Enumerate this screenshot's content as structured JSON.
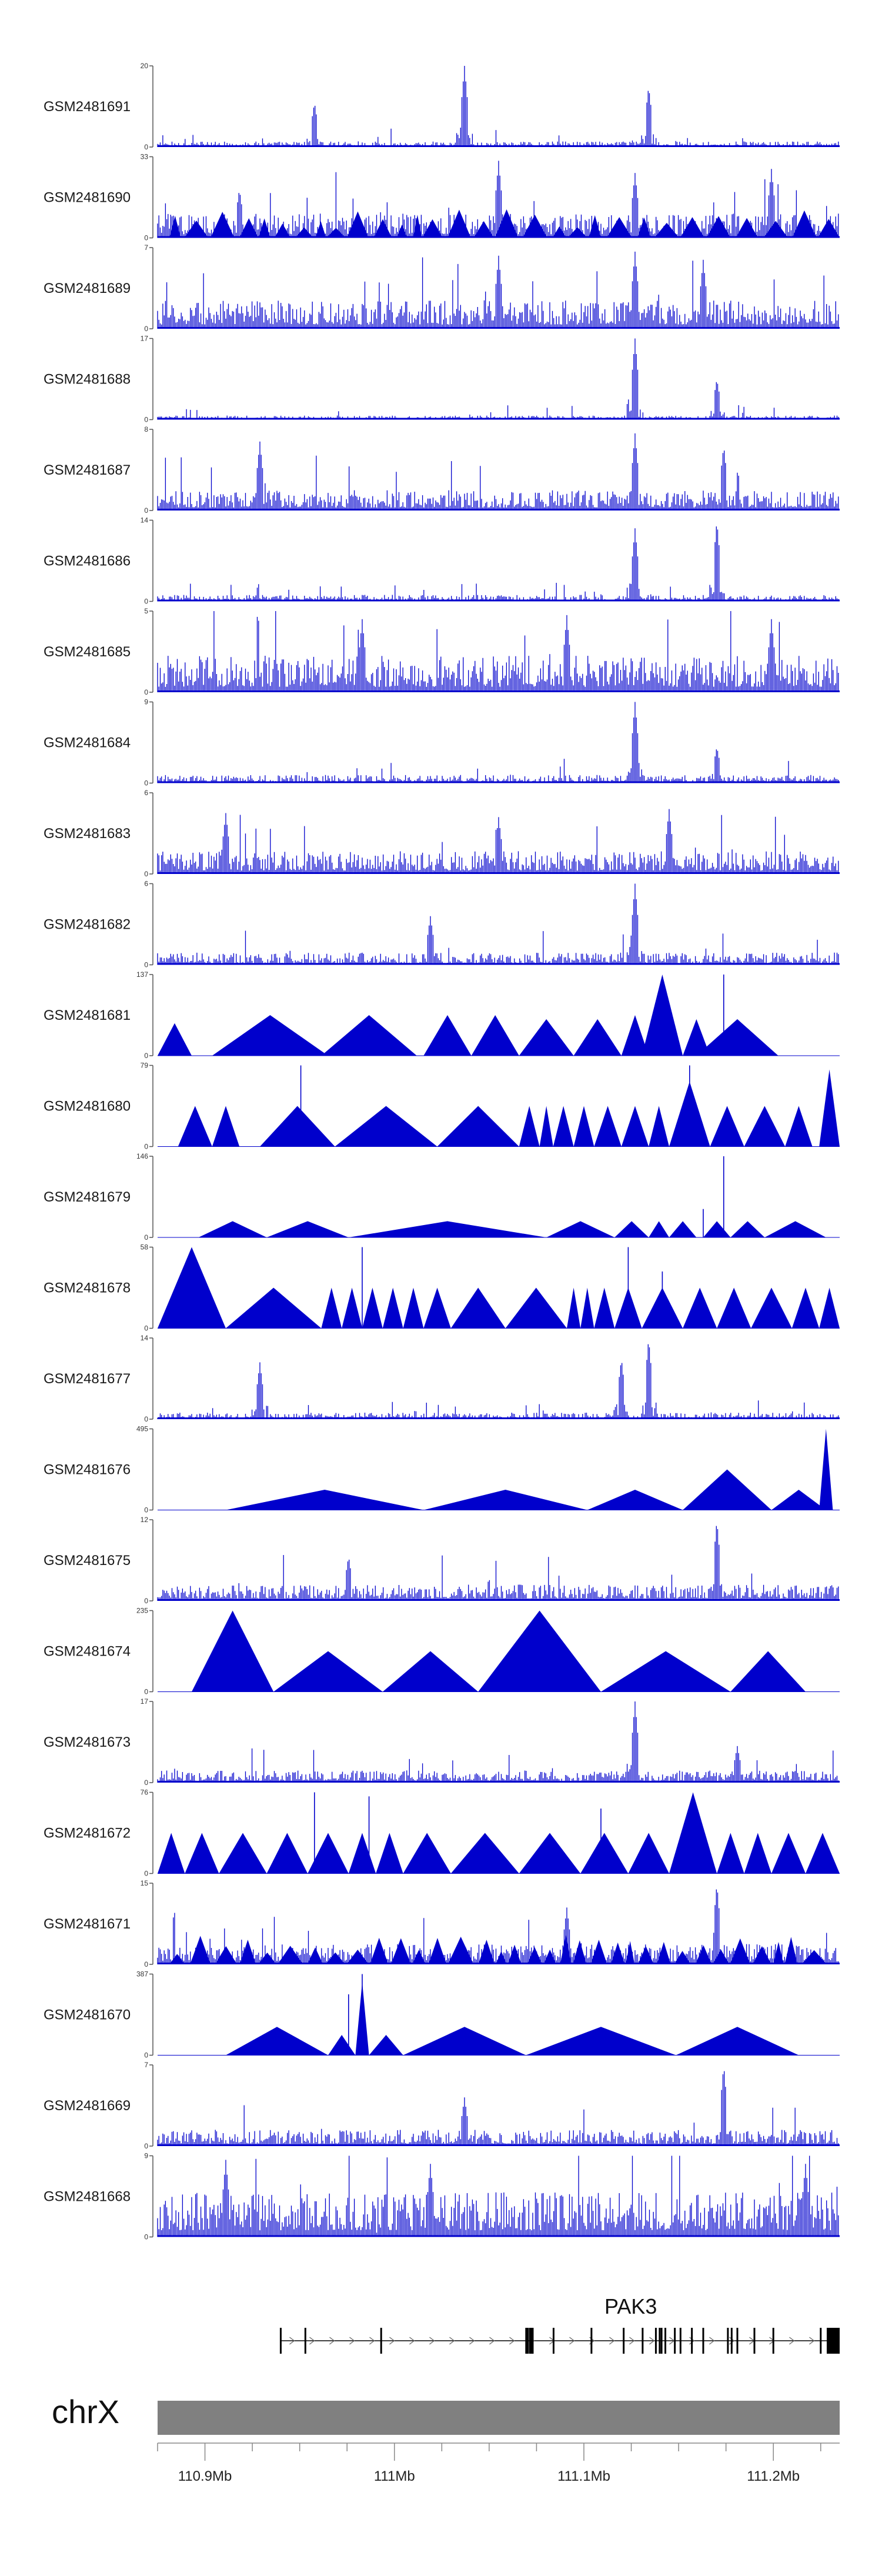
{
  "chart_data": {
    "type": "genome_tracks",
    "x_range_mb": [
      110.875,
      111.235
    ],
    "colors": {
      "signal": "#0000cc",
      "ideogram": "#808080",
      "gene": "#000000"
    },
    "tracks": [
      {
        "name": "GSM2481691",
        "max": "20",
        "min": "0",
        "style": "dense",
        "base": 0.07,
        "peaks": [
          [
            0.23,
            0.55
          ],
          [
            0.45,
            1.0
          ],
          [
            0.72,
            0.75
          ]
        ]
      },
      {
        "name": "GSM2481690",
        "max": "33",
        "min": "0",
        "style": "dense_tri",
        "base": 0.3,
        "peaks": [
          [
            0.12,
            0.6
          ],
          [
            0.5,
            0.95
          ],
          [
            0.7,
            0.8
          ],
          [
            0.9,
            0.85
          ]
        ]
      },
      {
        "name": "GSM2481689",
        "max": "7",
        "min": "0",
        "style": "dense",
        "base": 0.35,
        "peaks": [
          [
            0.5,
            0.9
          ],
          [
            0.7,
            0.95
          ],
          [
            0.8,
            0.85
          ]
        ]
      },
      {
        "name": "GSM2481688",
        "max": "17",
        "min": "0",
        "style": "dense",
        "base": 0.05,
        "peaks": [
          [
            0.7,
            1.0
          ],
          [
            0.82,
            0.5
          ]
        ]
      },
      {
        "name": "GSM2481687",
        "max": "8",
        "min": "0",
        "style": "dense",
        "base": 0.25,
        "peaks": [
          [
            0.15,
            0.85
          ],
          [
            0.7,
            0.95
          ],
          [
            0.83,
            0.8
          ]
        ]
      },
      {
        "name": "GSM2481686",
        "max": "14",
        "min": "0",
        "style": "dense",
        "base": 0.08,
        "peaks": [
          [
            0.7,
            0.9
          ],
          [
            0.82,
            1.0
          ]
        ]
      },
      {
        "name": "GSM2481685",
        "max": "5",
        "min": "0",
        "style": "dense",
        "base": 0.45,
        "peaks": [
          [
            0.3,
            0.9
          ],
          [
            0.6,
            0.95
          ],
          [
            0.9,
            0.9
          ]
        ]
      },
      {
        "name": "GSM2481684",
        "max": "9",
        "min": "0",
        "style": "dense",
        "base": 0.1,
        "peaks": [
          [
            0.7,
            1.0
          ],
          [
            0.82,
            0.45
          ]
        ]
      },
      {
        "name": "GSM2481683",
        "max": "6",
        "min": "0",
        "style": "dense",
        "base": 0.28,
        "peaks": [
          [
            0.1,
            0.75
          ],
          [
            0.5,
            0.7
          ],
          [
            0.75,
            0.8
          ]
        ]
      },
      {
        "name": "GSM2481682",
        "max": "6",
        "min": "0",
        "style": "dense",
        "base": 0.15,
        "peaks": [
          [
            0.7,
            1.0
          ],
          [
            0.4,
            0.6
          ]
        ]
      },
      {
        "name": "GSM2481681",
        "max": "137",
        "min": "0",
        "style": "triangles",
        "tris": [
          [
            0.0,
            0.05,
            0.4
          ],
          [
            0.08,
            0.25,
            0.5
          ],
          [
            0.24,
            0.38,
            0.5
          ],
          [
            0.39,
            0.46,
            0.5
          ],
          [
            0.46,
            0.53,
            0.5
          ],
          [
            0.53,
            0.61,
            0.45
          ],
          [
            0.61,
            0.68,
            0.45
          ],
          [
            0.68,
            0.72,
            0.5
          ],
          [
            0.71,
            0.77,
            1.0
          ],
          [
            0.77,
            0.81,
            0.45
          ],
          [
            0.79,
            0.91,
            0.45
          ]
        ],
        "spikes": [
          [
            0.83,
            1.0
          ]
        ]
      },
      {
        "name": "GSM2481680",
        "max": "79",
        "min": "0",
        "style": "triangles",
        "tris": [
          [
            0.03,
            0.08,
            0.5
          ],
          [
            0.08,
            0.12,
            0.5
          ],
          [
            0.15,
            0.26,
            0.5
          ],
          [
            0.26,
            0.41,
            0.5
          ],
          [
            0.41,
            0.53,
            0.5
          ],
          [
            0.53,
            0.56,
            0.5
          ],
          [
            0.56,
            0.58,
            0.5
          ],
          [
            0.58,
            0.61,
            0.5
          ],
          [
            0.61,
            0.64,
            0.5
          ],
          [
            0.64,
            0.68,
            0.5
          ],
          [
            0.68,
            0.72,
            0.5
          ],
          [
            0.72,
            0.75,
            0.5
          ],
          [
            0.75,
            0.81,
            0.8
          ],
          [
            0.81,
            0.86,
            0.5
          ],
          [
            0.86,
            0.92,
            0.5
          ],
          [
            0.92,
            0.96,
            0.5
          ],
          [
            0.97,
            1.0,
            0.95
          ]
        ],
        "spikes": [
          [
            0.21,
            1.0
          ],
          [
            0.78,
            1.0
          ]
        ]
      },
      {
        "name": "GSM2481679",
        "max": "146",
        "min": "0",
        "style": "triangles",
        "tris": [
          [
            0.06,
            0.16,
            0.2
          ],
          [
            0.16,
            0.28,
            0.2
          ],
          [
            0.28,
            0.57,
            0.2
          ],
          [
            0.57,
            0.67,
            0.2
          ],
          [
            0.67,
            0.72,
            0.2
          ],
          [
            0.72,
            0.75,
            0.2
          ],
          [
            0.75,
            0.79,
            0.2
          ],
          [
            0.8,
            0.84,
            0.2
          ],
          [
            0.84,
            0.89,
            0.2
          ],
          [
            0.89,
            0.98,
            0.2
          ]
        ],
        "spikes": [
          [
            0.83,
            1.0
          ],
          [
            0.8,
            0.35
          ]
        ]
      },
      {
        "name": "GSM2481678",
        "max": "58",
        "min": "0",
        "style": "triangles",
        "tris": [
          [
            0.0,
            0.1,
            1.0
          ],
          [
            0.1,
            0.24,
            0.5
          ],
          [
            0.24,
            0.27,
            0.5
          ],
          [
            0.27,
            0.3,
            0.5
          ],
          [
            0.3,
            0.33,
            0.5
          ],
          [
            0.33,
            0.36,
            0.5
          ],
          [
            0.36,
            0.39,
            0.5
          ],
          [
            0.39,
            0.43,
            0.5
          ],
          [
            0.43,
            0.51,
            0.5
          ],
          [
            0.51,
            0.6,
            0.5
          ],
          [
            0.6,
            0.62,
            0.5
          ],
          [
            0.62,
            0.64,
            0.5
          ],
          [
            0.64,
            0.67,
            0.5
          ],
          [
            0.67,
            0.71,
            0.5
          ],
          [
            0.71,
            0.77,
            0.5
          ],
          [
            0.77,
            0.82,
            0.5
          ],
          [
            0.82,
            0.87,
            0.5
          ],
          [
            0.87,
            0.93,
            0.5
          ],
          [
            0.93,
            0.97,
            0.5
          ],
          [
            0.97,
            1.0,
            0.5
          ]
        ],
        "spikes": [
          [
            0.3,
            1.0
          ],
          [
            0.69,
            1.0
          ],
          [
            0.74,
            0.7
          ]
        ]
      },
      {
        "name": "GSM2481677",
        "max": "14",
        "min": "0",
        "style": "dense",
        "base": 0.08,
        "peaks": [
          [
            0.15,
            0.7
          ],
          [
            0.72,
            1.0
          ],
          [
            0.68,
            0.75
          ]
        ]
      },
      {
        "name": "GSM2481676",
        "max": "495",
        "min": "0",
        "style": "triangles",
        "tris": [
          [
            0.1,
            0.39,
            0.25
          ],
          [
            0.39,
            0.63,
            0.25
          ],
          [
            0.63,
            0.77,
            0.25
          ],
          [
            0.77,
            0.9,
            0.5
          ],
          [
            0.9,
            0.98,
            0.25
          ],
          [
            0.97,
            0.99,
            1.0
          ]
        ],
        "spikes": []
      },
      {
        "name": "GSM2481675",
        "max": "12",
        "min": "0",
        "style": "dense",
        "base": 0.2,
        "peaks": [
          [
            0.82,
            1.0
          ],
          [
            0.28,
            0.55
          ]
        ]
      },
      {
        "name": "GSM2481674",
        "max": "235",
        "min": "0",
        "style": "triangles",
        "tris": [
          [
            0.05,
            0.17,
            1.0
          ],
          [
            0.17,
            0.33,
            0.5
          ],
          [
            0.33,
            0.47,
            0.5
          ],
          [
            0.47,
            0.65,
            1.0
          ],
          [
            0.65,
            0.84,
            0.5
          ],
          [
            0.84,
            0.95,
            0.5
          ]
        ],
        "spikes": []
      },
      {
        "name": "GSM2481673",
        "max": "17",
        "min": "0",
        "style": "dense",
        "base": 0.15,
        "peaks": [
          [
            0.7,
            1.0
          ],
          [
            0.85,
            0.45
          ]
        ]
      },
      {
        "name": "GSM2481672",
        "max": "76",
        "min": "0",
        "style": "triangles",
        "tris": [
          [
            0.0,
            0.04,
            0.5
          ],
          [
            0.04,
            0.09,
            0.5
          ],
          [
            0.09,
            0.16,
            0.5
          ],
          [
            0.16,
            0.22,
            0.5
          ],
          [
            0.22,
            0.28,
            0.5
          ],
          [
            0.28,
            0.32,
            0.5
          ],
          [
            0.32,
            0.36,
            0.5
          ],
          [
            0.36,
            0.43,
            0.5
          ],
          [
            0.43,
            0.53,
            0.5
          ],
          [
            0.53,
            0.62,
            0.5
          ],
          [
            0.62,
            0.69,
            0.5
          ],
          [
            0.69,
            0.75,
            0.5
          ],
          [
            0.75,
            0.82,
            1.0
          ],
          [
            0.82,
            0.86,
            0.5
          ],
          [
            0.86,
            0.9,
            0.5
          ],
          [
            0.9,
            0.95,
            0.5
          ],
          [
            0.95,
            1.0,
            0.5
          ]
        ],
        "spikes": [
          [
            0.23,
            1.0
          ],
          [
            0.31,
            0.95
          ],
          [
            0.65,
            0.8
          ]
        ]
      },
      {
        "name": "GSM2481671",
        "max": "15",
        "min": "0",
        "style": "dense_tri",
        "base": 0.25,
        "peaks": [
          [
            0.82,
            1.0
          ],
          [
            0.6,
            0.7
          ]
        ]
      },
      {
        "name": "GSM2481670",
        "max": "387",
        "min": "0",
        "style": "triangles",
        "tris": [
          [
            0.1,
            0.25,
            0.35
          ],
          [
            0.25,
            0.29,
            0.25
          ],
          [
            0.29,
            0.31,
            0.9
          ],
          [
            0.31,
            0.36,
            0.25
          ],
          [
            0.36,
            0.54,
            0.35
          ],
          [
            0.54,
            0.76,
            0.35
          ],
          [
            0.76,
            0.94,
            0.35
          ]
        ],
        "spikes": [
          [
            0.3,
            1.0
          ],
          [
            0.28,
            0.75
          ]
        ]
      },
      {
        "name": "GSM2481669",
        "max": "7",
        "min": "0",
        "style": "dense",
        "base": 0.2,
        "peaks": [
          [
            0.83,
            1.0
          ],
          [
            0.45,
            0.6
          ]
        ]
      },
      {
        "name": "GSM2481668",
        "max": "9",
        "min": "0",
        "style": "dense",
        "base": 0.55,
        "peaks": [
          [
            0.1,
            0.95
          ],
          [
            0.4,
            0.9
          ],
          [
            0.95,
            0.9
          ]
        ]
      }
    ],
    "gene": {
      "name": "PAK3",
      "start_mb": 110.94,
      "end_mb": 111.235,
      "exons_mb": [
        110.94,
        110.953,
        110.993,
        111.07,
        111.072,
        111.073,
        111.084,
        111.104,
        111.121,
        111.131,
        111.138,
        111.14,
        111.141,
        111.143,
        111.148,
        111.151,
        111.157,
        111.163,
        111.176,
        111.178,
        111.181,
        111.19,
        111.2,
        111.225,
        111.235
      ]
    },
    "chromosome": "chrX",
    "axis_ticks": [
      {
        "mb": 110.9,
        "label": "110.9Mb"
      },
      {
        "mb": 111.0,
        "label": "111Mb"
      },
      {
        "mb": 111.1,
        "label": "111.1Mb"
      },
      {
        "mb": 111.2,
        "label": "111.2Mb"
      }
    ],
    "minor_ticks_mb": [
      110.875,
      110.925,
      110.95,
      110.975,
      111.025,
      111.05,
      111.075,
      111.125,
      111.15,
      111.175,
      111.225
    ]
  }
}
